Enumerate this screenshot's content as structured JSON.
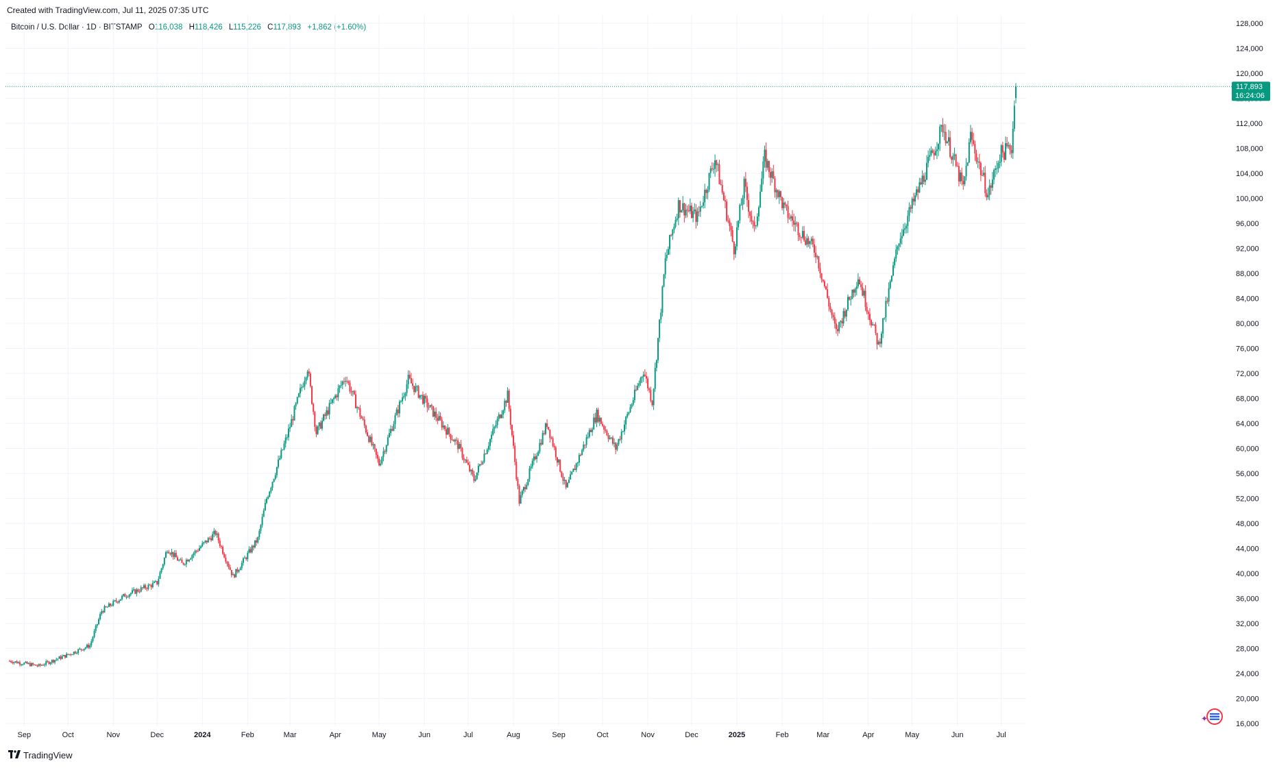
{
  "header": {
    "created": "Created with TradingView.com, Jul 11, 2025 07:35 UTC"
  },
  "legend": {
    "symbol": "Bitcoin / U.S. Dollar · 1D · BITSTAMP",
    "open_label": "O",
    "open": "116,038",
    "high_label": "H",
    "high": "118,426",
    "low_label": "L",
    "low": "115,226",
    "close_label": "C",
    "close": "117,893",
    "change": "+1,862 (+1.60%)"
  },
  "price_tag": {
    "price": "117,893",
    "countdown": "16:24:06"
  },
  "footer": {
    "brand": "TradingView",
    "logo": "tradingview-logo-icon"
  },
  "colors": {
    "up": "#089981",
    "down": "#f23645",
    "grid": "#f0f3fa",
    "text": "#131722",
    "last_line": "#089981"
  },
  "chart_data": {
    "type": "candlestick",
    "title": "Bitcoin / U.S. Dollar · 1D · BITSTAMP",
    "ylim": [
      16000,
      130000
    ],
    "y_ticks": [
      16000,
      20000,
      24000,
      28000,
      32000,
      36000,
      40000,
      44000,
      48000,
      52000,
      56000,
      60000,
      64000,
      68000,
      72000,
      76000,
      80000,
      84000,
      88000,
      92000,
      96000,
      100000,
      104000,
      108000,
      112000,
      116000,
      120000,
      124000,
      128000
    ],
    "y_tick_labels": [
      "16,000",
      "20,000",
      "24,000",
      "28,000",
      "32,000",
      "36,000",
      "40,000",
      "44,000",
      "48,000",
      "52,000",
      "56,000",
      "60,000",
      "64,000",
      "68,000",
      "72,000",
      "76,000",
      "80,000",
      "84,000",
      "88,000",
      "92,000",
      "96,000",
      "100,000",
      "104,000",
      "108,000",
      "112,000",
      "116,000",
      "120,000",
      "124,000",
      "128,000"
    ],
    "x_ticks": [
      {
        "date": "2023-09-01",
        "label": "Sep",
        "bold": false
      },
      {
        "date": "2023-10-01",
        "label": "Oct",
        "bold": false
      },
      {
        "date": "2023-11-01",
        "label": "Nov",
        "bold": false
      },
      {
        "date": "2023-12-01",
        "label": "Dec",
        "bold": false
      },
      {
        "date": "2024-01-01",
        "label": "2024",
        "bold": true
      },
      {
        "date": "2024-02-01",
        "label": "Feb",
        "bold": false
      },
      {
        "date": "2024-03-01",
        "label": "Mar",
        "bold": false
      },
      {
        "date": "2024-04-01",
        "label": "Apr",
        "bold": false
      },
      {
        "date": "2024-05-01",
        "label": "May",
        "bold": false
      },
      {
        "date": "2024-06-01",
        "label": "Jun",
        "bold": false
      },
      {
        "date": "2024-07-01",
        "label": "Jul",
        "bold": false
      },
      {
        "date": "2024-08-01",
        "label": "Aug",
        "bold": false
      },
      {
        "date": "2024-09-01",
        "label": "Sep",
        "bold": false
      },
      {
        "date": "2024-10-01",
        "label": "Oct",
        "bold": false
      },
      {
        "date": "2024-11-01",
        "label": "Nov",
        "bold": false
      },
      {
        "date": "2024-12-01",
        "label": "Dec",
        "bold": false
      },
      {
        "date": "2025-01-01",
        "label": "2025",
        "bold": true
      },
      {
        "date": "2025-02-01",
        "label": "Feb",
        "bold": false
      },
      {
        "date": "2025-03-01",
        "label": "Mar",
        "bold": false
      },
      {
        "date": "2025-04-01",
        "label": "Apr",
        "bold": false
      },
      {
        "date": "2025-05-01",
        "label": "May",
        "bold": false
      },
      {
        "date": "2025-06-01",
        "label": "Jun",
        "bold": false
      },
      {
        "date": "2025-07-01",
        "label": "Jul",
        "bold": false
      }
    ],
    "last_price": 117893,
    "series": [
      {
        "name": "BTCUSD",
        "key_closes": [
          {
            "date": "2023-08-22",
            "close": 26000
          },
          {
            "date": "2023-09-11",
            "close": 25200
          },
          {
            "date": "2023-10-01",
            "close": 27000
          },
          {
            "date": "2023-10-16",
            "close": 28500
          },
          {
            "date": "2023-10-24",
            "close": 34000
          },
          {
            "date": "2023-11-09",
            "close": 36500
          },
          {
            "date": "2023-12-01",
            "close": 38500
          },
          {
            "date": "2023-12-08",
            "close": 44000
          },
          {
            "date": "2023-12-18",
            "close": 41500
          },
          {
            "date": "2024-01-10",
            "close": 46500
          },
          {
            "date": "2024-01-22",
            "close": 39500
          },
          {
            "date": "2024-02-08",
            "close": 45500
          },
          {
            "date": "2024-02-14",
            "close": 52000
          },
          {
            "date": "2024-02-28",
            "close": 62000
          },
          {
            "date": "2024-03-13",
            "close": 73000
          },
          {
            "date": "2024-03-19",
            "close": 62500
          },
          {
            "date": "2024-04-08",
            "close": 71500
          },
          {
            "date": "2024-05-01",
            "close": 57500
          },
          {
            "date": "2024-05-21",
            "close": 71000
          },
          {
            "date": "2024-06-24",
            "close": 60500
          },
          {
            "date": "2024-07-05",
            "close": 55000
          },
          {
            "date": "2024-07-28",
            "close": 68500
          },
          {
            "date": "2024-08-05",
            "close": 51500
          },
          {
            "date": "2024-08-24",
            "close": 64000
          },
          {
            "date": "2024-09-06",
            "close": 53500
          },
          {
            "date": "2024-09-27",
            "close": 65500
          },
          {
            "date": "2024-10-10",
            "close": 60000
          },
          {
            "date": "2024-10-29",
            "close": 72500
          },
          {
            "date": "2024-11-04",
            "close": 67500
          },
          {
            "date": "2024-11-13",
            "close": 90000
          },
          {
            "date": "2024-11-22",
            "close": 99000
          },
          {
            "date": "2024-12-05",
            "close": 97000
          },
          {
            "date": "2024-12-17",
            "close": 106500
          },
          {
            "date": "2024-12-30",
            "close": 92000
          },
          {
            "date": "2025-01-06",
            "close": 102000
          },
          {
            "date": "2025-01-13",
            "close": 94500
          },
          {
            "date": "2025-01-20",
            "close": 106500
          },
          {
            "date": "2025-02-03",
            "close": 98000
          },
          {
            "date": "2025-02-24",
            "close": 91500
          },
          {
            "date": "2025-03-10",
            "close": 78500
          },
          {
            "date": "2025-03-25",
            "close": 87500
          },
          {
            "date": "2025-04-08",
            "close": 76500
          },
          {
            "date": "2025-04-22",
            "close": 93500
          },
          {
            "date": "2025-05-08",
            "close": 103000
          },
          {
            "date": "2025-05-22",
            "close": 111500
          },
          {
            "date": "2025-06-05",
            "close": 101500
          },
          {
            "date": "2025-06-10",
            "close": 110000
          },
          {
            "date": "2025-06-22",
            "close": 100500
          },
          {
            "date": "2025-06-30",
            "close": 107000
          },
          {
            "date": "2025-07-08",
            "close": 108200
          },
          {
            "date": "2025-07-11",
            "close": 117893
          }
        ]
      }
    ]
  }
}
